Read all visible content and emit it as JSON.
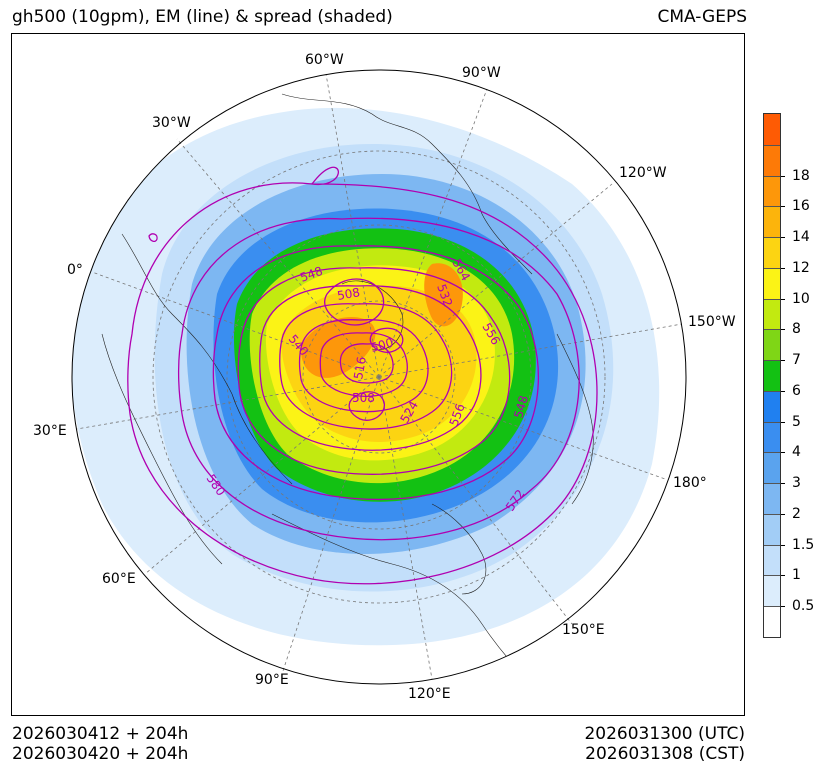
{
  "title_left": "gh500 (10gpm), EM (line) & spread (shaded)",
  "title_right": "CMA-GEPS",
  "footer": {
    "init_utc": "2026030412 + 204h",
    "init_cst": "2026030420 + 204h",
    "valid_utc": "2026031300 (UTC)",
    "valid_cst": "2026031308 (CST)"
  },
  "longitude_labels": [
    "60°W",
    "90°W",
    "30°W",
    "120°W",
    "0°",
    "150°W",
    "30°E",
    "180°",
    "60°E",
    "150°E",
    "90°E",
    "120°E"
  ],
  "contour_labels": [
    "548",
    "508",
    "564",
    "532",
    "540",
    "500",
    "556",
    "516",
    "508",
    "548",
    "524",
    "556",
    "580",
    "572"
  ],
  "colorbar": {
    "levels": [
      "0.5",
      "1",
      "1.5",
      "2",
      "3",
      "4",
      "5",
      "6",
      "7",
      "8",
      "10",
      "12",
      "14",
      "16",
      "18"
    ],
    "colors": [
      "#ffffff",
      "#dcedfc",
      "#c3dffa",
      "#a2cdf6",
      "#7db7f2",
      "#5aa3ee",
      "#3a8ef0",
      "#2080f0",
      "#13c113",
      "#7fd616",
      "#c2ea10",
      "#fbf316",
      "#fcd412",
      "#fcb40c",
      "#fd970a",
      "#fd7a07",
      "#fe5b04"
    ]
  }
}
